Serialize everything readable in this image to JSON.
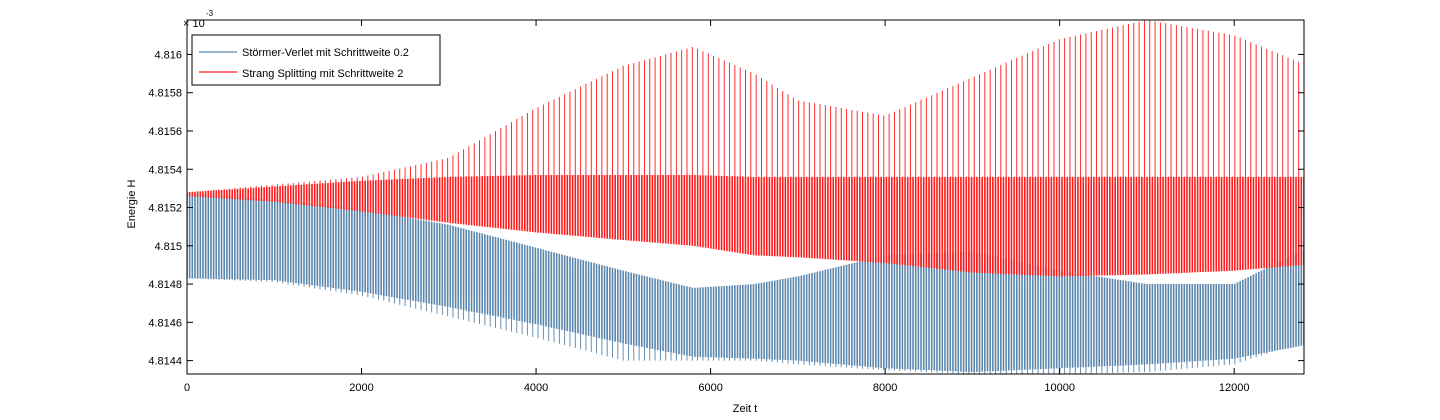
{
  "chart_data": {
    "type": "line",
    "title": "",
    "xlabel": "Zeit t",
    "ylabel": "Energie H",
    "xlim": [
      0,
      12800
    ],
    "ylim": [
      4.81433,
      4.81618
    ],
    "y_exponent_label": "× 10",
    "y_exponent_power": "-3",
    "grid": false,
    "legend_position": "top-left",
    "x_ticks": [
      0,
      2000,
      4000,
      6000,
      8000,
      10000,
      12000
    ],
    "x_tick_labels": [
      "0",
      "2000",
      "4000",
      "6000",
      "8000",
      "10000",
      "12000"
    ],
    "y_ticks": [
      4.8144,
      4.8146,
      4.8148,
      4.815,
      4.8152,
      4.8154,
      4.8156,
      4.8158,
      4.816
    ],
    "y_tick_labels": [
      "4.8144",
      "4.8146",
      "4.8148",
      "4.815",
      "4.8152",
      "4.8154",
      "4.8156",
      "4.8158",
      "4.816"
    ],
    "x": [
      0,
      1000,
      2000,
      3000,
      4000,
      5000,
      5800,
      6500,
      7000,
      8000,
      9000,
      10000,
      11000,
      12000,
      12800
    ],
    "series": [
      {
        "name": "Störmer-Verlet mit Schrittweite 0.2",
        "color": "#5a86ad",
        "upper": [
          4.81527,
          4.81524,
          4.81519,
          4.81511,
          4.81499,
          4.81487,
          4.81478,
          4.8148,
          4.81484,
          4.81495,
          4.81497,
          4.81487,
          4.8148,
          4.8148,
          4.81498
        ],
        "lower": [
          4.81483,
          4.81482,
          4.81476,
          4.81468,
          4.81459,
          4.81449,
          4.81442,
          4.81441,
          4.8144,
          4.81436,
          4.81434,
          4.81436,
          4.81438,
          4.81441,
          4.81448
        ],
        "spikes": [
          4.81483,
          4.81481,
          4.81474,
          4.81463,
          4.81452,
          4.8144,
          4.8144,
          4.8144,
          4.81438,
          4.81435,
          4.81433,
          4.81433,
          4.81434,
          4.81438,
          4.8145
        ]
      },
      {
        "name": "Strang Splitting mit Schrittweite 2",
        "color": "#ff1a1a",
        "upper": [
          4.81528,
          4.81531,
          4.81534,
          4.81536,
          4.81537,
          4.81537,
          4.81537,
          4.81536,
          4.81536,
          4.81536,
          4.81536,
          4.81536,
          4.81536,
          4.81536,
          4.81536
        ],
        "lower": [
          4.81526,
          4.81523,
          4.81518,
          4.81512,
          4.81507,
          4.81503,
          4.815,
          4.81495,
          4.81494,
          4.81491,
          4.81486,
          4.81484,
          4.81485,
          4.81487,
          4.8149
        ],
        "spikes": [
          4.81528,
          4.81532,
          4.81536,
          4.81546,
          4.81572,
          4.81594,
          4.81604,
          4.8159,
          4.81576,
          4.81568,
          4.81588,
          4.81608,
          4.81618,
          4.8161,
          4.81595
        ]
      }
    ]
  }
}
